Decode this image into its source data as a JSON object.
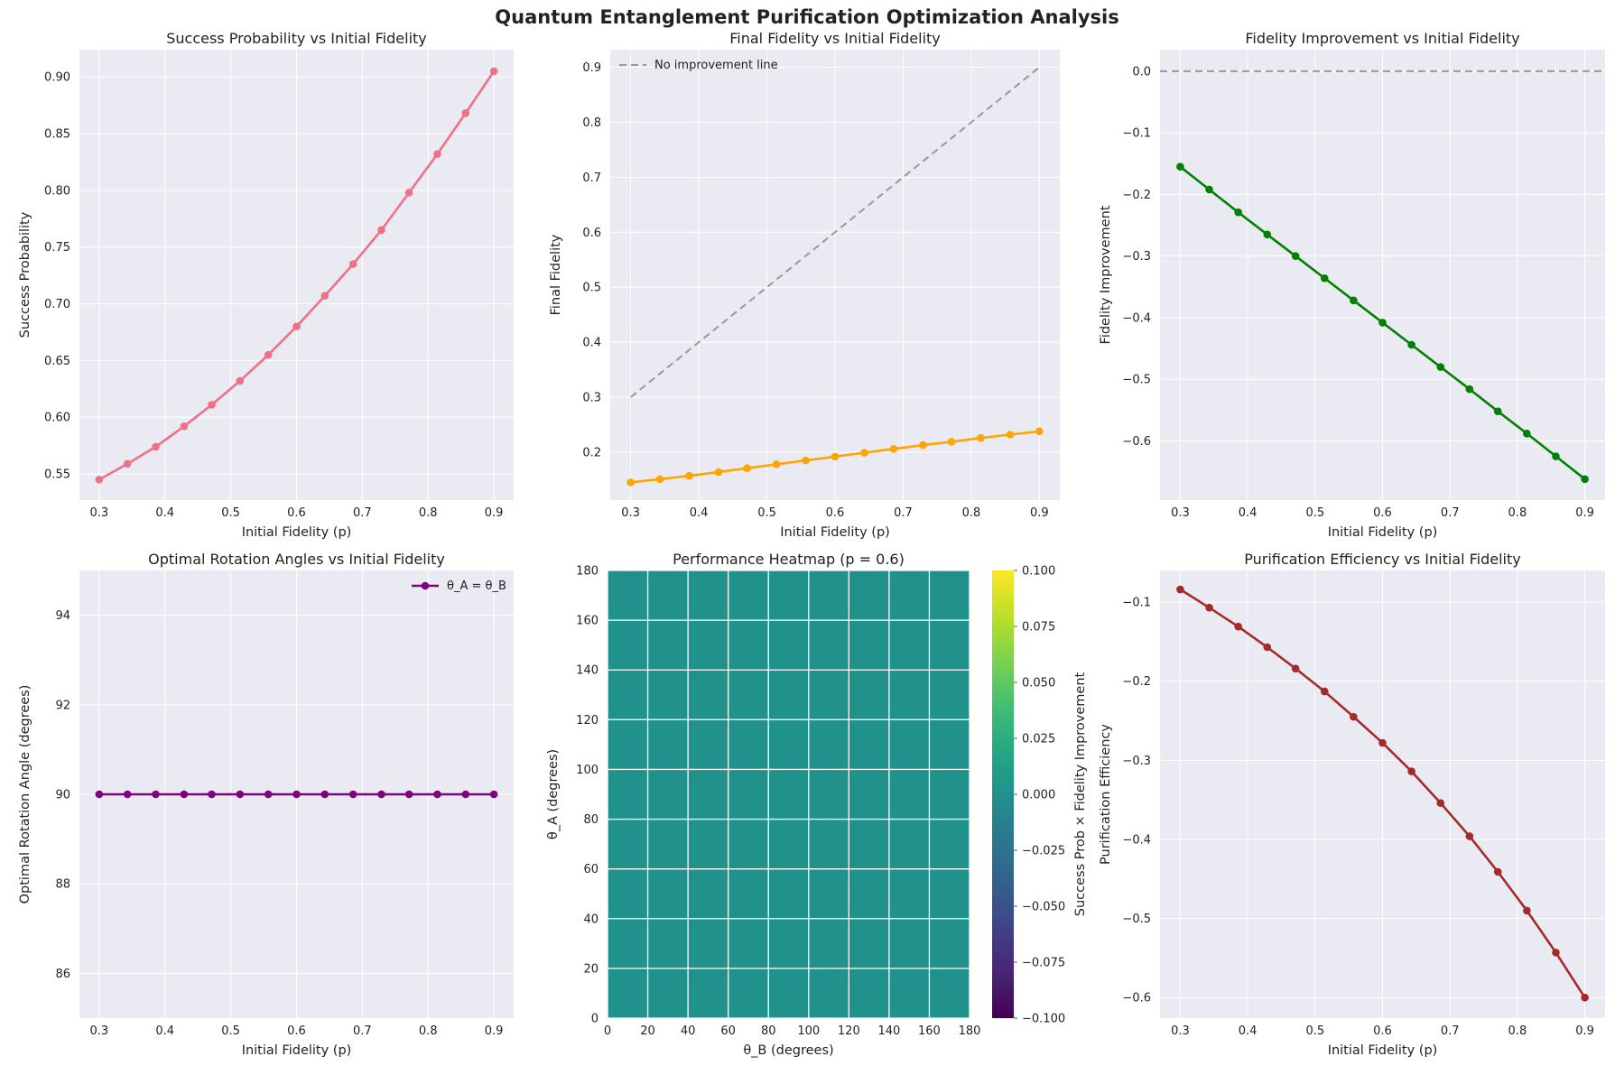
{
  "figure": {
    "title": "Quantum Entanglement Purification Optimization Analysis"
  },
  "chart_data": [
    {
      "id": "success",
      "type": "line",
      "title": "Success Probability vs Initial Fidelity",
      "xlabel": "Initial Fidelity (p)",
      "ylabel": "Success Probability",
      "xlim": [
        0.27,
        0.93
      ],
      "ylim": [
        0.527,
        0.924
      ],
      "xticks": [
        0.3,
        0.4,
        0.5,
        0.6,
        0.7,
        0.8,
        0.9
      ],
      "yticks": [
        0.55,
        0.6,
        0.65,
        0.7,
        0.75,
        0.8,
        0.85,
        0.9
      ],
      "xtick_labels": [
        "0.3",
        "0.4",
        "0.5",
        "0.6",
        "0.7",
        "0.8",
        "0.9"
      ],
      "ytick_labels": [
        "0.55",
        "0.60",
        "0.65",
        "0.70",
        "0.75",
        "0.80",
        "0.85",
        "0.90"
      ],
      "series": [
        {
          "name": "Success Probability",
          "color": "#f07087",
          "x": [
            0.3,
            0.343,
            0.386,
            0.429,
            0.471,
            0.514,
            0.557,
            0.6,
            0.643,
            0.686,
            0.729,
            0.771,
            0.814,
            0.857,
            0.9
          ],
          "y": [
            0.545,
            0.559,
            0.574,
            0.592,
            0.611,
            0.632,
            0.655,
            0.68,
            0.707,
            0.735,
            0.765,
            0.798,
            0.832,
            0.868,
            0.905
          ]
        }
      ]
    },
    {
      "id": "final",
      "type": "line",
      "title": "Final Fidelity vs Initial Fidelity",
      "xlabel": "Initial Fidelity (p)",
      "ylabel": "Final Fidelity",
      "xlim": [
        0.27,
        0.93
      ],
      "ylim": [
        0.113,
        0.932
      ],
      "xticks": [
        0.3,
        0.4,
        0.5,
        0.6,
        0.7,
        0.8,
        0.9
      ],
      "yticks": [
        0.2,
        0.3,
        0.4,
        0.5,
        0.6,
        0.7,
        0.8,
        0.9
      ],
      "xtick_labels": [
        "0.3",
        "0.4",
        "0.5",
        "0.6",
        "0.7",
        "0.8",
        "0.9"
      ],
      "ytick_labels": [
        "0.2",
        "0.3",
        "0.4",
        "0.5",
        "0.6",
        "0.7",
        "0.8",
        "0.9"
      ],
      "legend": {
        "position": "top-left",
        "label": "No improvement line"
      },
      "series": [
        {
          "name": "No improvement line",
          "color": "#999999",
          "dashed": true,
          "markers": false,
          "x": [
            0.3,
            0.9
          ],
          "y": [
            0.3,
            0.9
          ]
        },
        {
          "name": "Final Fidelity",
          "color": "#ffa500",
          "x": [
            0.3,
            0.343,
            0.386,
            0.429,
            0.471,
            0.514,
            0.557,
            0.6,
            0.643,
            0.686,
            0.729,
            0.771,
            0.814,
            0.857,
            0.9
          ],
          "y": [
            0.145,
            0.151,
            0.157,
            0.164,
            0.171,
            0.178,
            0.185,
            0.192,
            0.199,
            0.206,
            0.213,
            0.219,
            0.226,
            0.232,
            0.238
          ]
        }
      ]
    },
    {
      "id": "improvement",
      "type": "line",
      "title": "Fidelity Improvement vs Initial Fidelity",
      "xlabel": "Initial Fidelity (p)",
      "ylabel": "Fidelity Improvement",
      "xlim": [
        0.27,
        0.93
      ],
      "ylim": [
        -0.696,
        0.035
      ],
      "xticks": [
        0.3,
        0.4,
        0.5,
        0.6,
        0.7,
        0.8,
        0.9
      ],
      "yticks": [
        -0.6,
        -0.5,
        -0.4,
        -0.3,
        -0.2,
        -0.1,
        0.0
      ],
      "xtick_labels": [
        "0.3",
        "0.4",
        "0.5",
        "0.6",
        "0.7",
        "0.8",
        "0.9"
      ],
      "ytick_labels": [
        "−0.6",
        "−0.5",
        "−0.4",
        "−0.3",
        "−0.2",
        "−0.1",
        "0.0"
      ],
      "series": [
        {
          "name": "Zero line",
          "color": "#999999",
          "dashed": true,
          "markers": false,
          "x": [
            0.27,
            0.93
          ],
          "y": [
            0.0,
            0.0
          ]
        },
        {
          "name": "Fidelity Improvement",
          "color": "#008000",
          "x": [
            0.3,
            0.343,
            0.386,
            0.429,
            0.471,
            0.514,
            0.557,
            0.6,
            0.643,
            0.686,
            0.729,
            0.771,
            0.814,
            0.857,
            0.9
          ],
          "y": [
            -0.155,
            -0.192,
            -0.229,
            -0.265,
            -0.3,
            -0.336,
            -0.372,
            -0.408,
            -0.444,
            -0.48,
            -0.516,
            -0.552,
            -0.588,
            -0.625,
            -0.662
          ]
        }
      ]
    },
    {
      "id": "angles",
      "type": "line",
      "title": "Optimal Rotation Angles vs Initial Fidelity",
      "xlabel": "Initial Fidelity (p)",
      "ylabel": "Optimal Rotation Angle (degrees)",
      "xlim": [
        0.27,
        0.93
      ],
      "ylim": [
        85.0,
        95.0
      ],
      "xticks": [
        0.3,
        0.4,
        0.5,
        0.6,
        0.7,
        0.8,
        0.9
      ],
      "yticks": [
        86,
        88,
        90,
        92,
        94
      ],
      "xtick_labels": [
        "0.3",
        "0.4",
        "0.5",
        "0.6",
        "0.7",
        "0.8",
        "0.9"
      ],
      "ytick_labels": [
        "86",
        "88",
        "90",
        "92",
        "94"
      ],
      "legend": {
        "position": "top-right",
        "label": "θ_A = θ_B"
      },
      "series": [
        {
          "name": "θ_A = θ_B",
          "color": "#800080",
          "x": [
            0.3,
            0.343,
            0.386,
            0.429,
            0.471,
            0.514,
            0.557,
            0.6,
            0.643,
            0.686,
            0.729,
            0.771,
            0.814,
            0.857,
            0.9
          ],
          "y": [
            90,
            90,
            90,
            90,
            90,
            90,
            90,
            90,
            90,
            90,
            90,
            90,
            90,
            90,
            90
          ]
        }
      ]
    },
    {
      "id": "heatmap",
      "type": "heatmap",
      "title": "Performance Heatmap (p = 0.6)",
      "xlabel": "θ_B (degrees)",
      "ylabel": "θ_A (degrees)",
      "xlim": [
        0,
        180
      ],
      "ylim": [
        0,
        180
      ],
      "xticks": [
        0,
        20,
        40,
        60,
        80,
        100,
        120,
        140,
        160,
        180
      ],
      "yticks": [
        0,
        20,
        40,
        60,
        80,
        100,
        120,
        140,
        160,
        180
      ],
      "xtick_labels": [
        "0",
        "20",
        "40",
        "60",
        "80",
        "100",
        "120",
        "140",
        "160",
        "180"
      ],
      "ytick_labels": [
        "0",
        "20",
        "40",
        "60",
        "80",
        "100",
        "120",
        "140",
        "160",
        "180"
      ],
      "value": 0.0,
      "cell_color": "#21918c",
      "colorbar": {
        "label": "Success Prob × Fidelity Improvement",
        "min": -0.1,
        "max": 0.1,
        "ticks": [
          -0.1,
          -0.075,
          -0.05,
          -0.025,
          0.0,
          0.025,
          0.05,
          0.075,
          0.1
        ],
        "tick_labels": [
          "−0.100",
          "−0.075",
          "−0.050",
          "−0.025",
          "0.000",
          "0.025",
          "0.050",
          "0.075",
          "0.100"
        ],
        "colors": [
          "#440154",
          "#482878",
          "#3e4989",
          "#31688e",
          "#26828e",
          "#1f9e89",
          "#35b779",
          "#6ece58",
          "#b5de2b",
          "#fde725"
        ]
      }
    },
    {
      "id": "efficiency",
      "type": "line",
      "title": "Purification Efficiency vs Initial Fidelity",
      "xlabel": "Initial Fidelity (p)",
      "ylabel": "Purification Efficiency",
      "xlim": [
        0.27,
        0.93
      ],
      "ylim": [
        -0.626,
        -0.06
      ],
      "xticks": [
        0.3,
        0.4,
        0.5,
        0.6,
        0.7,
        0.8,
        0.9
      ],
      "yticks": [
        -0.6,
        -0.5,
        -0.4,
        -0.3,
        -0.2,
        -0.1
      ],
      "xtick_labels": [
        "0.3",
        "0.4",
        "0.5",
        "0.6",
        "0.7",
        "0.8",
        "0.9"
      ],
      "ytick_labels": [
        "−0.6",
        "−0.5",
        "−0.4",
        "−0.3",
        "−0.2",
        "−0.1"
      ],
      "series": [
        {
          "name": "Purification Efficiency",
          "color": "#a52a2a",
          "x": [
            0.3,
            0.343,
            0.386,
            0.429,
            0.471,
            0.514,
            0.557,
            0.6,
            0.643,
            0.686,
            0.729,
            0.771,
            0.814,
            0.857,
            0.9
          ],
          "y": [
            -0.084,
            -0.107,
            -0.131,
            -0.157,
            -0.184,
            -0.213,
            -0.245,
            -0.278,
            -0.314,
            -0.354,
            -0.396,
            -0.441,
            -0.49,
            -0.543,
            -0.6
          ]
        }
      ]
    }
  ]
}
